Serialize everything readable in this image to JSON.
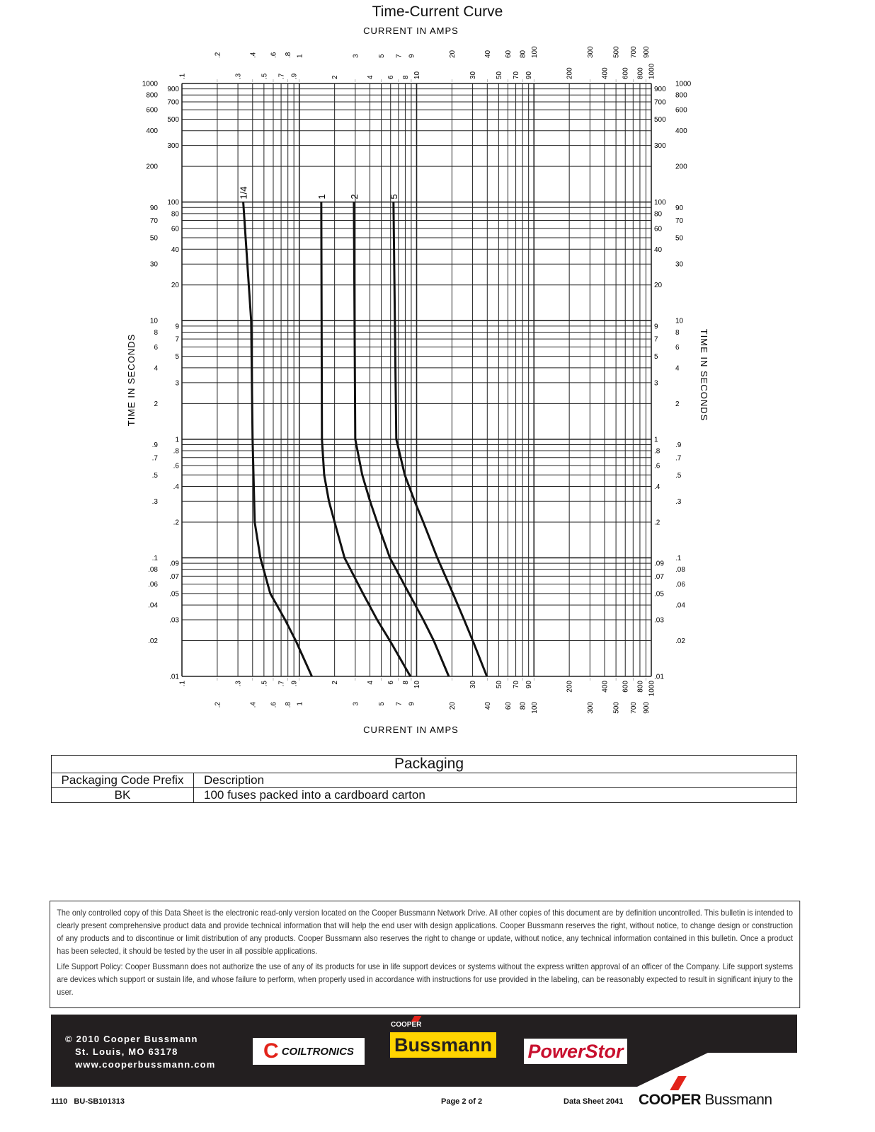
{
  "chart_data": {
    "type": "line",
    "title": "Time-Current Curve",
    "xlabel": "CURRENT IN AMPS",
    "ylabel": "TIME IN SECONDS",
    "xscale": "log",
    "yscale": "log",
    "xlim": [
      0.1,
      1000
    ],
    "ylim": [
      0.01,
      1000
    ],
    "grid": true,
    "xticks": [
      ".1",
      ".2",
      ".3",
      ".4",
      ".5",
      ".6",
      ".7",
      ".8",
      ".9",
      "1",
      "2",
      "3",
      "4",
      "5",
      "6",
      "7",
      "8",
      "9",
      "10",
      "20",
      "30",
      "40",
      "50",
      "60",
      "70",
      "80",
      "90",
      "100",
      "200",
      "300",
      "400",
      "500",
      "600",
      "700",
      "800",
      "900",
      "1000"
    ],
    "yticks": [
      ".01",
      ".02",
      ".03",
      ".04",
      ".05",
      ".06",
      ".07",
      ".08",
      ".09",
      ".1",
      ".2",
      ".3",
      ".4",
      ".5",
      ".6",
      ".7",
      ".8",
      ".9",
      "1",
      "2",
      "3",
      "4",
      "5",
      "6",
      "7",
      "8",
      "9",
      "10",
      "20",
      "30",
      "40",
      "50",
      "60",
      "70",
      "80",
      "90",
      "100",
      "200",
      "300",
      "400",
      "500",
      "600",
      "700",
      "800",
      "900",
      "1000"
    ],
    "series": [
      {
        "name": "1/4",
        "points": [
          [
            0.333,
            100
          ],
          [
            0.389,
            10
          ],
          [
            0.4,
            1
          ],
          [
            0.417,
            0.2
          ],
          [
            0.466,
            0.1
          ],
          [
            0.566,
            0.05
          ],
          [
            0.757,
            0.03
          ],
          [
            0.933,
            0.02
          ],
          [
            1.28,
            0.01
          ]
        ]
      },
      {
        "name": "1",
        "points": [
          [
            1.54,
            100
          ],
          [
            1.56,
            1
          ],
          [
            1.63,
            0.5
          ],
          [
            1.79,
            0.3
          ],
          [
            2.0,
            0.2
          ],
          [
            2.43,
            0.1
          ],
          [
            3.49,
            0.05
          ],
          [
            4.61,
            0.03
          ],
          [
            5.92,
            0.02
          ],
          [
            8.85,
            0.01
          ]
        ]
      },
      {
        "name": "2",
        "points": [
          [
            2.92,
            100
          ],
          [
            3.0,
            1
          ],
          [
            3.44,
            0.5
          ],
          [
            4.01,
            0.3
          ],
          [
            4.61,
            0.2
          ],
          [
            5.92,
            0.1
          ],
          [
            8.61,
            0.05
          ],
          [
            11.4,
            0.03
          ],
          [
            14.0,
            0.02
          ],
          [
            18.8,
            0.01
          ]
        ]
      },
      {
        "name": "5",
        "points": [
          [
            6.35,
            100
          ],
          [
            6.71,
            1
          ],
          [
            7.93,
            0.5
          ],
          [
            9.62,
            0.3
          ],
          [
            11.4,
            0.2
          ],
          [
            15.0,
            0.1
          ],
          [
            20.4,
            0.05
          ],
          [
            25.4,
            0.03
          ],
          [
            30.1,
            0.02
          ],
          [
            39.7,
            0.01
          ]
        ]
      }
    ]
  },
  "packaging": {
    "title": "Packaging",
    "col1": "Packaging Code Prefix",
    "col2": "Description",
    "rows": [
      {
        "code": "BK",
        "desc": "100 fuses packed into a cardboard carton"
      }
    ]
  },
  "disclaimer": {
    "p1": "The only controlled copy of this Data Sheet is the electronic read-only version located on the Cooper Bussmann Network Drive. All other copies of this document are by definition uncontrolled. This bulletin is intended to clearly present comprehensive product data and provide technical information that will help the end user with design applications. Cooper Bussmann reserves the right, without notice, to change design or construction of any products and to discontinue or limit distribution of any products. Cooper Bussmann also reserves the right to change or update, without notice, any technical information contained in this bulletin. Once a product has been selected, it should be tested by the user in all possible applications.",
    "p2": "Life Support Policy: Cooper Bussmann does not authorize the use of any of its products for use in life support devices or systems without the express written approval of an officer of the Company. Life support systems are devices which support or sustain life, and whose failure to perform, when properly used in accordance with instructions for use provided in the labeling, can be reasonably expected to result in significant injury to the user."
  },
  "footer": {
    "copyright": "© 2010 Cooper Bussmann",
    "city": "St. Louis, MO 63178",
    "web": "www.cooperbussmann.com",
    "logos": [
      "COILTRONICS",
      "COOPER",
      "Bussmann",
      "PowerStor"
    ],
    "code": "1110   BU-SB101313",
    "page": "Page 2 of 2",
    "sheet": "Data Sheet 2041",
    "brand_a": "COOPER",
    "brand_b": "Bussmann",
    "colors": {
      "band": "#231f20",
      "red": "#e2231a",
      "yellow": "#ffd400",
      "powerstor": "#c8102e"
    }
  }
}
